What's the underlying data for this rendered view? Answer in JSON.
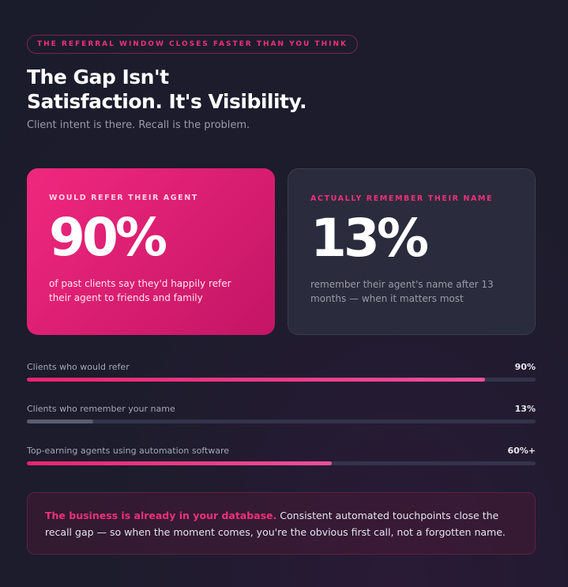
{
  "eyebrow": "THE REFERRAL WINDOW CLOSES FASTER THAN YOU THINK",
  "headline": {
    "line1": "The Gap Isn't",
    "line2": "Satisfaction. It's Visibility."
  },
  "subtitle": "Client intent is there. Recall is the problem.",
  "cards": [
    {
      "label": "WOULD REFER THEIR AGENT",
      "stat": "90%",
      "description": "of past clients say they'd happily refer their agent to friends and family"
    },
    {
      "label": "ACTUALLY REMEMBER THEIR NAME",
      "stat": "13%",
      "description": "remember their agent's name after 13 months — when it matters most"
    }
  ],
  "bars": [
    {
      "label": "Clients who would refer",
      "value_text": "90%",
      "value": 90,
      "style": "pink"
    },
    {
      "label": "Clients who remember your name",
      "value_text": "13%",
      "value": 13,
      "style": "grey"
    },
    {
      "label": "Top-earning agents using automation software",
      "value_text": "60%+",
      "value": 60,
      "style": "pink"
    }
  ],
  "callout": {
    "strong": "The business is already in your database.",
    "text": " Consistent automated touchpoints close the recall gap — so when the moment comes, you're the obvious first call, not a forgotten name."
  },
  "colors": {
    "accent": "#f0307a",
    "background": "#1c1c2c",
    "card_dark": "#2a2b3c"
  }
}
